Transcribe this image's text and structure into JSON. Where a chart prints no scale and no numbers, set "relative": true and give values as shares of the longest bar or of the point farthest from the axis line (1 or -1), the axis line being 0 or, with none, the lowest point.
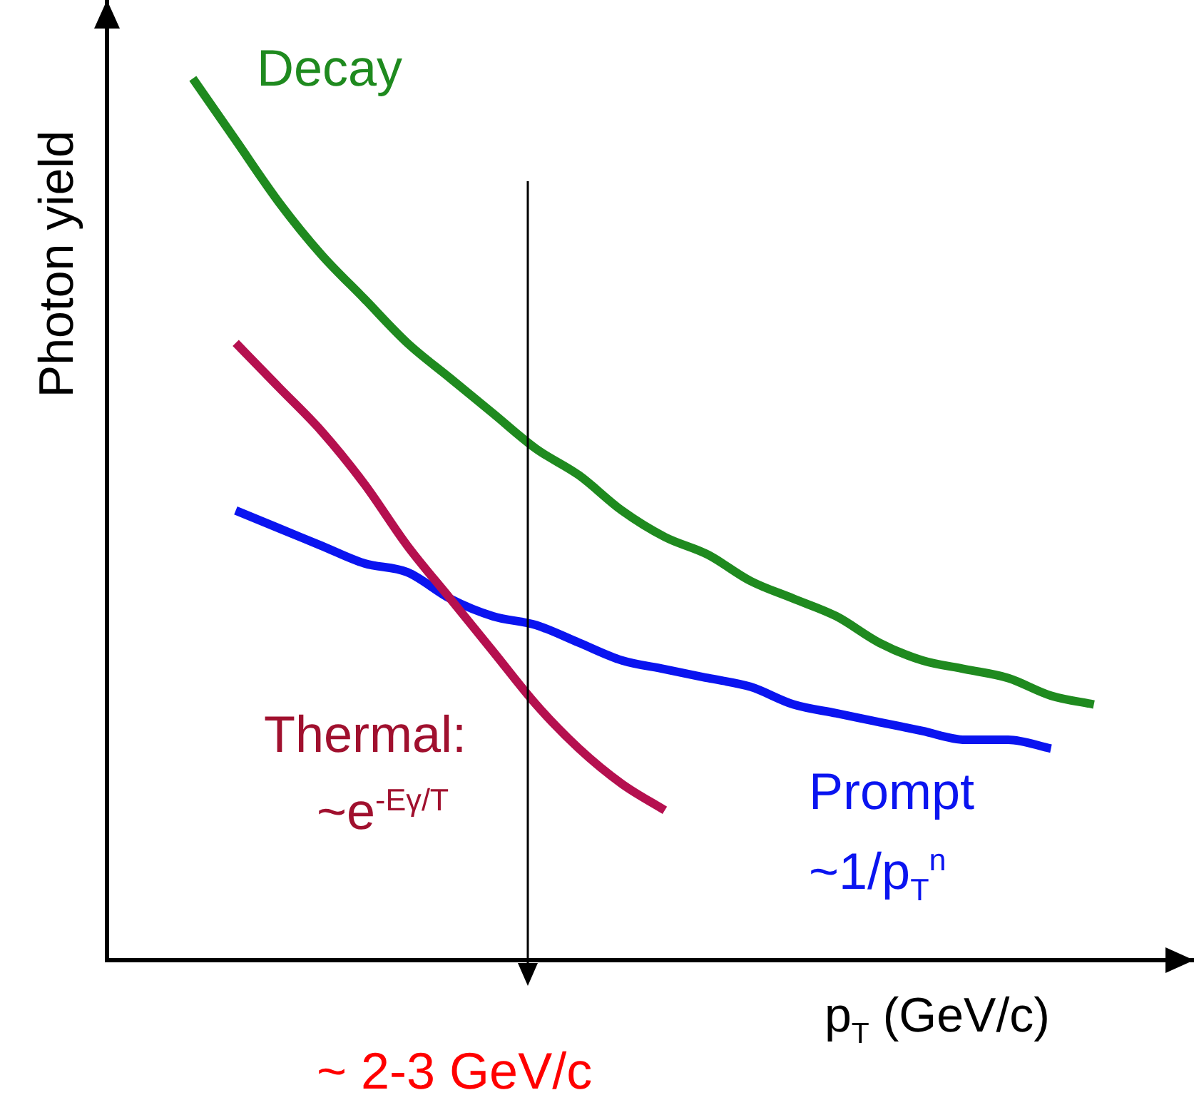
{
  "chart_data": {
    "type": "line",
    "relative": true,
    "marker": "none",
    "legend": false,
    "xlabel": "p$_{T}$ (GeV/c)",
    "ylabel": "Photon yield",
    "categories": [
      null,
      null,
      null,
      null,
      null,
      null,
      null,
      null,
      null,
      null,
      null,
      null,
      null,
      null,
      null,
      null,
      null,
      null,
      null,
      null,
      null,
      null
    ],
    "series": [
      {
        "name": "Decay",
        "color": "#1f8a1f",
        "values": [
          1.0,
          0.93,
          0.86,
          0.8,
          0.75,
          0.7,
          0.66,
          0.62,
          0.58,
          0.55,
          0.51,
          0.48,
          0.46,
          0.43,
          0.41,
          0.39,
          0.36,
          0.34,
          0.33,
          0.32,
          0.3,
          0.29
        ]
      },
      {
        "name": "Thermal:",
        "color": "#b5104f",
        "values": [
          null,
          0.7,
          0.65,
          0.6,
          0.54,
          0.47,
          0.41,
          0.35,
          0.29,
          0.24,
          0.2,
          0.17,
          null,
          null,
          null,
          null,
          null,
          null,
          null,
          null,
          null,
          null
        ]
      },
      {
        "name": "Prompt",
        "color": "#0a14f0",
        "values": [
          null,
          0.51,
          0.49,
          0.47,
          0.45,
          0.44,
          0.41,
          0.39,
          0.38,
          0.36,
          0.34,
          0.33,
          0.32,
          0.31,
          0.29,
          0.28,
          0.27,
          0.26,
          0.25,
          0.25,
          0.24,
          null
        ]
      }
    ],
    "annotations": [
      "~e$^{-Eγ/T}$",
      "~1/p$_{T}$$^{n}$",
      "~ 2-3 GeV/c"
    ]
  }
}
